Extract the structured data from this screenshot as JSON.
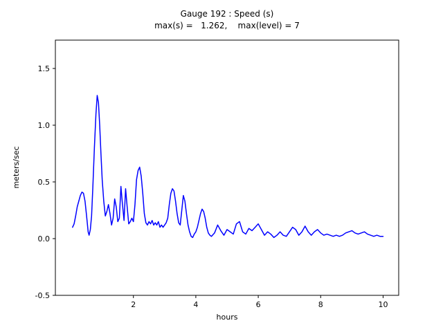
{
  "chart": {
    "title": "Gauge 192 : Speed (s)",
    "subtitle": "max(s) =   1.262,    max(level) = 7",
    "xlabel": "hours",
    "ylabel": "meters/sec"
  },
  "chart_data": {
    "type": "line",
    "title": "Gauge 192 : Speed (s)",
    "subtitle": "max(s) =   1.262,    max(level) = 7",
    "xlabel": "hours",
    "ylabel": "meters/sec",
    "xlim": [
      -0.5,
      10.5
    ],
    "ylim": [
      -0.5,
      1.75
    ],
    "xticks": [
      2,
      4,
      6,
      8,
      10
    ],
    "xtick_labels": [
      "2",
      "4",
      "6",
      "8",
      "10"
    ],
    "yticks": [
      -0.5,
      0.0,
      0.5,
      1.0,
      1.5
    ],
    "ytick_labels": [
      "-0.5",
      "0.0",
      "0.5",
      "1.0",
      "1.5"
    ],
    "grid": false,
    "legend": "none",
    "line_color": "#0000ff",
    "axis_color": "#000000",
    "max_s": 1.262,
    "max_level": 7,
    "series": [
      {
        "name": "speed",
        "points": [
          [
            0.05,
            0.1
          ],
          [
            0.1,
            0.13
          ],
          [
            0.15,
            0.2
          ],
          [
            0.2,
            0.28
          ],
          [
            0.25,
            0.33
          ],
          [
            0.3,
            0.38
          ],
          [
            0.35,
            0.41
          ],
          [
            0.4,
            0.4
          ],
          [
            0.45,
            0.33
          ],
          [
            0.5,
            0.2
          ],
          [
            0.55,
            0.06
          ],
          [
            0.58,
            0.03
          ],
          [
            0.62,
            0.08
          ],
          [
            0.66,
            0.2
          ],
          [
            0.7,
            0.45
          ],
          [
            0.75,
            0.8
          ],
          [
            0.8,
            1.1
          ],
          [
            0.84,
            1.262
          ],
          [
            0.88,
            1.2
          ],
          [
            0.92,
            1.0
          ],
          [
            0.96,
            0.75
          ],
          [
            1.0,
            0.52
          ],
          [
            1.05,
            0.33
          ],
          [
            1.1,
            0.2
          ],
          [
            1.15,
            0.24
          ],
          [
            1.2,
            0.3
          ],
          [
            1.25,
            0.22
          ],
          [
            1.3,
            0.12
          ],
          [
            1.35,
            0.18
          ],
          [
            1.4,
            0.35
          ],
          [
            1.45,
            0.28
          ],
          [
            1.5,
            0.15
          ],
          [
            1.55,
            0.18
          ],
          [
            1.6,
            0.46
          ],
          [
            1.65,
            0.3
          ],
          [
            1.7,
            0.16
          ],
          [
            1.75,
            0.44
          ],
          [
            1.8,
            0.28
          ],
          [
            1.85,
            0.13
          ],
          [
            1.9,
            0.15
          ],
          [
            1.95,
            0.18
          ],
          [
            2.0,
            0.15
          ],
          [
            2.05,
            0.3
          ],
          [
            2.1,
            0.52
          ],
          [
            2.15,
            0.6
          ],
          [
            2.2,
            0.63
          ],
          [
            2.25,
            0.55
          ],
          [
            2.3,
            0.4
          ],
          [
            2.35,
            0.22
          ],
          [
            2.4,
            0.14
          ],
          [
            2.45,
            0.12
          ],
          [
            2.5,
            0.15
          ],
          [
            2.55,
            0.13
          ],
          [
            2.6,
            0.16
          ],
          [
            2.65,
            0.12
          ],
          [
            2.7,
            0.14
          ],
          [
            2.75,
            0.12
          ],
          [
            2.8,
            0.15
          ],
          [
            2.85,
            0.1
          ],
          [
            2.9,
            0.12
          ],
          [
            2.95,
            0.1
          ],
          [
            3.0,
            0.12
          ],
          [
            3.05,
            0.14
          ],
          [
            3.1,
            0.18
          ],
          [
            3.15,
            0.3
          ],
          [
            3.2,
            0.4
          ],
          [
            3.25,
            0.44
          ],
          [
            3.3,
            0.42
          ],
          [
            3.35,
            0.33
          ],
          [
            3.4,
            0.22
          ],
          [
            3.45,
            0.14
          ],
          [
            3.5,
            0.12
          ],
          [
            3.55,
            0.25
          ],
          [
            3.6,
            0.38
          ],
          [
            3.65,
            0.33
          ],
          [
            3.7,
            0.22
          ],
          [
            3.75,
            0.12
          ],
          [
            3.8,
            0.06
          ],
          [
            3.85,
            0.02
          ],
          [
            3.9,
            0.01
          ],
          [
            3.95,
            0.04
          ],
          [
            4.0,
            0.06
          ],
          [
            4.05,
            0.1
          ],
          [
            4.1,
            0.16
          ],
          [
            4.15,
            0.22
          ],
          [
            4.2,
            0.26
          ],
          [
            4.25,
            0.24
          ],
          [
            4.3,
            0.18
          ],
          [
            4.35,
            0.1
          ],
          [
            4.4,
            0.05
          ],
          [
            4.45,
            0.03
          ],
          [
            4.5,
            0.02
          ],
          [
            4.6,
            0.05
          ],
          [
            4.7,
            0.12
          ],
          [
            4.8,
            0.07
          ],
          [
            4.9,
            0.03
          ],
          [
            5.0,
            0.08
          ],
          [
            5.1,
            0.06
          ],
          [
            5.2,
            0.04
          ],
          [
            5.3,
            0.13
          ],
          [
            5.4,
            0.15
          ],
          [
            5.5,
            0.06
          ],
          [
            5.6,
            0.04
          ],
          [
            5.7,
            0.09
          ],
          [
            5.8,
            0.07
          ],
          [
            5.9,
            0.1
          ],
          [
            6.0,
            0.13
          ],
          [
            6.1,
            0.08
          ],
          [
            6.2,
            0.03
          ],
          [
            6.3,
            0.06
          ],
          [
            6.4,
            0.04
          ],
          [
            6.5,
            0.01
          ],
          [
            6.6,
            0.03
          ],
          [
            6.7,
            0.06
          ],
          [
            6.8,
            0.03
          ],
          [
            6.9,
            0.02
          ],
          [
            7.0,
            0.06
          ],
          [
            7.1,
            0.1
          ],
          [
            7.2,
            0.08
          ],
          [
            7.3,
            0.03
          ],
          [
            7.4,
            0.06
          ],
          [
            7.5,
            0.11
          ],
          [
            7.6,
            0.06
          ],
          [
            7.7,
            0.03
          ],
          [
            7.8,
            0.06
          ],
          [
            7.9,
            0.08
          ],
          [
            8.0,
            0.05
          ],
          [
            8.1,
            0.03
          ],
          [
            8.2,
            0.04
          ],
          [
            8.3,
            0.03
          ],
          [
            8.4,
            0.02
          ],
          [
            8.5,
            0.03
          ],
          [
            8.6,
            0.02
          ],
          [
            8.7,
            0.03
          ],
          [
            8.8,
            0.05
          ],
          [
            8.9,
            0.06
          ],
          [
            9.0,
            0.07
          ],
          [
            9.1,
            0.05
          ],
          [
            9.2,
            0.04
          ],
          [
            9.3,
            0.05
          ],
          [
            9.4,
            0.06
          ],
          [
            9.5,
            0.04
          ],
          [
            9.6,
            0.03
          ],
          [
            9.7,
            0.02
          ],
          [
            9.8,
            0.03
          ],
          [
            9.9,
            0.02
          ],
          [
            10.0,
            0.02
          ]
        ]
      }
    ]
  }
}
